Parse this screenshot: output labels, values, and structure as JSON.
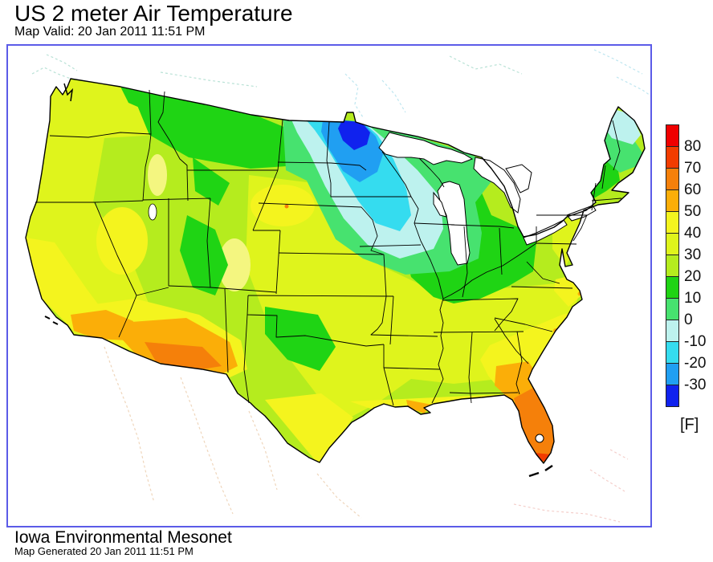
{
  "header": {
    "title": "US 2 meter Air Temperature",
    "valid": "Map Valid: 20 Jan 2011 11:51 PM"
  },
  "footer": {
    "title": "Iowa Environmental Mesonet",
    "generated": "Map Generated 20 Jan 2011 11:51 PM"
  },
  "palette": {
    "red": "#F00000",
    "orangeRed": "#F23C00",
    "orange": "#F5800A",
    "amber": "#FBAE08",
    "yellow": "#F4F41E",
    "paleYellow": "#F4F680",
    "yellowGreen": "#DFF41C",
    "chartreuse": "#B5EC1E",
    "green": "#1FD414",
    "springGreen": "#47E26F",
    "paleCyan": "#BDF2EE",
    "cyan": "#35DCEF",
    "azure": "#209FF2",
    "blue": "#1022EE"
  },
  "frame_color": "#5B5BE8",
  "legend": {
    "order": [
      "red",
      "orangeRed",
      "orange",
      "amber",
      "yellow",
      "yellowGreen",
      "chartreuse",
      "green",
      "springGreen",
      "paleCyan",
      "cyan",
      "azure",
      "blue"
    ],
    "tick_labels": [
      "80",
      "70",
      "60",
      "50",
      "40",
      "30",
      "20",
      "10",
      "0",
      "-10",
      "-20",
      "-30"
    ],
    "unit_label": "[F]"
  },
  "chart_data": {
    "type": "heatmap",
    "title": "US 2 meter Air Temperature",
    "valid_time": "20 Jan 2011 11:51 PM",
    "unit": "F",
    "scale_ticks": [
      80,
      70,
      60,
      50,
      40,
      30,
      20,
      10,
      0,
      -10,
      -20,
      -30
    ],
    "scale_colors_top_to_bottom": [
      "#F00000",
      "#F23C00",
      "#F5800A",
      "#FBAE08",
      "#F4F41E",
      "#DFF41C",
      "#B5EC1E",
      "#1FD414",
      "#47E26F",
      "#BDF2EE",
      "#35DCEF",
      "#209FF2",
      "#1022EE"
    ],
    "legend_position": "right",
    "regions": [
      {
        "area": "Northern Minnesota cold core",
        "temp_f": "below -30"
      },
      {
        "area": "Northeast North Dakota / north-central Minnesota",
        "temp_f": "-30 to -20"
      },
      {
        "area": "Eastern North Dakota and most of Minnesota",
        "temp_f": "-20 to -10"
      },
      {
        "area": "Wisconsin, southern Minnesota, central Dakotas",
        "temp_f": "-10 to 0"
      },
      {
        "area": "Northern Maine",
        "temp_f": "-10 to 0"
      },
      {
        "area": "Iowa, eastern Nebraska, northern Illinois, upper Michigan",
        "temp_f": "0 to 10"
      },
      {
        "area": "Montana, Michigan, Ohio Valley, New York, northern New England, Rockies",
        "temp_f": "10 to 20"
      },
      {
        "area": "Pacific Northwest, Great Basin, central Plains, Appalachians, Mid-Atlantic",
        "temp_f": "20 to 40"
      },
      {
        "area": "California coast, western Nevada, southern Plains, Gulf Coast, Carolinas coastal plain",
        "temp_f": "40 to 50"
      },
      {
        "area": "Western Nebraska warm spot",
        "temp_f": "50 to 60"
      },
      {
        "area": "Southern California and Arizona deserts, northern Florida",
        "temp_f": "50 to 60"
      },
      {
        "area": "Southwest Arizona core, central and south Florida",
        "temp_f": "60 to 70"
      },
      {
        "area": "Southern tip of Florida",
        "temp_f": "70 to 80"
      }
    ]
  }
}
